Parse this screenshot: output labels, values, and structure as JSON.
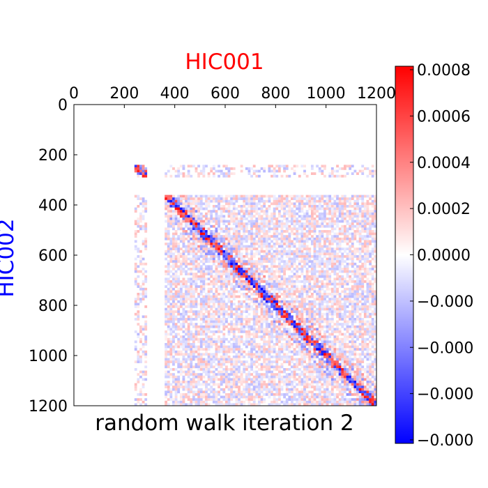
{
  "chart_data": {
    "type": "heatmap",
    "title": "random walk iteration 2",
    "xlabel": "HIC001",
    "ylabel": "HIC002",
    "xlim": [
      0,
      1200
    ],
    "ylim": [
      1200,
      0
    ],
    "xticks": [
      "0",
      "200",
      "400",
      "600",
      "800",
      "1000",
      "1200"
    ],
    "yticks": [
      "0",
      "200",
      "400",
      "600",
      "800",
      "1000",
      "1200"
    ],
    "colorbar": {
      "colormap": "bwr",
      "range": [
        -0.0008,
        0.0008
      ],
      "tick_labels": [
        "0.0008",
        "0.0006",
        "0.0004",
        "0.0002",
        "0.0000",
        "−0.000",
        "−0.000",
        "−0.000",
        "−0.000"
      ],
      "colors": {
        "low": "#0000ff",
        "mid": "#ffffff",
        "high": "#ff0000"
      }
    },
    "regions": {
      "empty_rows": [
        [
          0,
          235
        ],
        [
          285,
          355
        ]
      ],
      "empty_cols": [
        [
          0,
          235
        ],
        [
          285,
          355
        ]
      ],
      "sparse_band": [
        235,
        285
      ],
      "diagonal_start": 360
    },
    "grid": false
  }
}
